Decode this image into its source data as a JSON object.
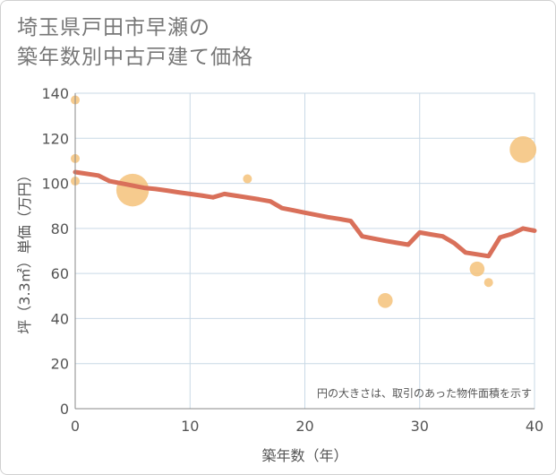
{
  "chart_data": {
    "type": "scatter+line",
    "title_line1": "埼玉県戸田市早瀬の",
    "title_line2": "築年数別中古戸建て価格",
    "xlabel": "築年数（年）",
    "ylabel": "坪（3.3㎡）単価（万円）",
    "xlim": [
      0,
      40
    ],
    "ylim": [
      0,
      140
    ],
    "x_ticks": [
      0,
      10,
      20,
      30,
      40
    ],
    "y_ticks": [
      0,
      20,
      40,
      60,
      80,
      100,
      120,
      140
    ],
    "note": "円の大きさは、取引のあった物件面積を示す",
    "colors": {
      "bubble": "#f5c27a",
      "line": "#d9705a",
      "grid": "#c9d9e6",
      "axis": "#888888"
    },
    "scatter_points": [
      {
        "x": 0,
        "y": 137,
        "size": 1
      },
      {
        "x": 0,
        "y": 111,
        "size": 1
      },
      {
        "x": 0,
        "y": 101,
        "size": 1
      },
      {
        "x": 5,
        "y": 97,
        "size": 5
      },
      {
        "x": 15,
        "y": 102,
        "size": 1
      },
      {
        "x": 27,
        "y": 48,
        "size": 2
      },
      {
        "x": 35,
        "y": 62,
        "size": 2
      },
      {
        "x": 36,
        "y": 56,
        "size": 1
      },
      {
        "x": 39,
        "y": 115,
        "size": 4
      }
    ],
    "trend_line": {
      "x": [
        0,
        2,
        3,
        4,
        5,
        6,
        7,
        8,
        9,
        10,
        11,
        12,
        13,
        14,
        15,
        16,
        17,
        18,
        19,
        20,
        21,
        22,
        23,
        24,
        25,
        26,
        27,
        28,
        29,
        30,
        31,
        32,
        33,
        34,
        35,
        36,
        37,
        38,
        39,
        40
      ],
      "y": [
        105,
        103.5,
        101,
        100,
        99,
        98,
        97.5,
        96.8,
        96,
        95.3,
        94.6,
        93.8,
        95.3,
        94.5,
        93.7,
        92.9,
        92,
        89,
        88,
        87,
        86,
        85,
        84.2,
        83.3,
        76.5,
        75.5,
        74.5,
        73.6,
        72.8,
        78.2,
        77.3,
        76.5,
        73.5,
        69.3,
        68.5,
        67.7,
        76,
        77.5,
        80,
        79
      ]
    }
  }
}
